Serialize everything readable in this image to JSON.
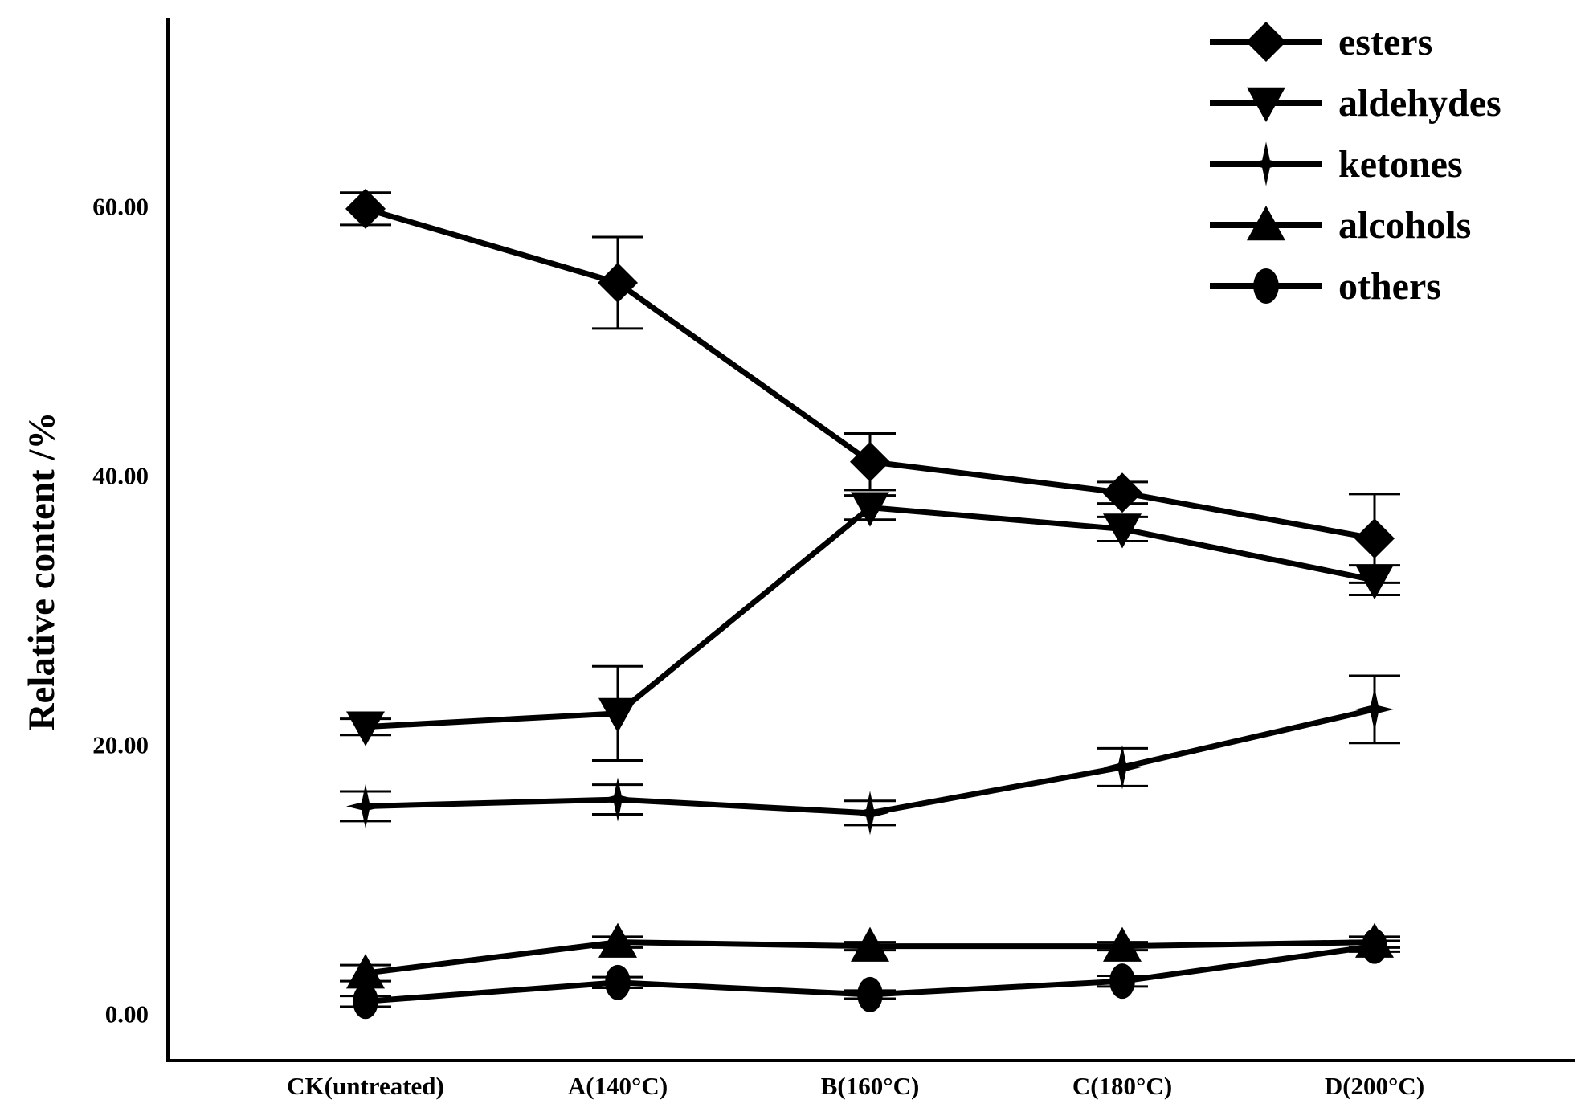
{
  "chart_data": {
    "type": "line",
    "title": "",
    "xlabel": "",
    "ylabel": "Relative content /%",
    "categories": [
      "CK(untreated)",
      "A(140°C)",
      "B(160°C)",
      "C(180°C)",
      "D(200°C)"
    ],
    "y_ticks": [
      "0.00",
      "20.00",
      "40.00",
      "60.00"
    ],
    "ylim": [
      -3.5,
      74
    ],
    "grid": false,
    "legend_position": "top-right",
    "series": [
      {
        "name": "esters",
        "marker": "diamond",
        "values": [
          59.8,
          54.3,
          41.0,
          38.7,
          35.3
        ],
        "errors": [
          1.2,
          3.4,
          2.1,
          0.8,
          3.3
        ]
      },
      {
        "name": "aldehydes",
        "marker": "triangle-down",
        "values": [
          21.3,
          22.3,
          37.6,
          36.0,
          32.2
        ],
        "errors": [
          0.6,
          3.5,
          0.9,
          0.9,
          1.1
        ]
      },
      {
        "name": "ketones",
        "marker": "star-4",
        "values": [
          15.4,
          15.9,
          14.9,
          18.3,
          22.6
        ],
        "errors": [
          1.1,
          1.1,
          0.9,
          1.4,
          2.5
        ]
      },
      {
        "name": "alcohols",
        "marker": "triangle-up",
        "values": [
          3.0,
          5.3,
          5.0,
          5.0,
          5.3
        ],
        "errors": [
          0.6,
          0.4,
          0.3,
          0.3,
          0.4
        ]
      },
      {
        "name": "others",
        "marker": "ellipse",
        "values": [
          0.9,
          2.3,
          1.4,
          2.4,
          5.0
        ],
        "errors": [
          0.4,
          0.4,
          0.3,
          0.4,
          0.4
        ]
      }
    ]
  }
}
